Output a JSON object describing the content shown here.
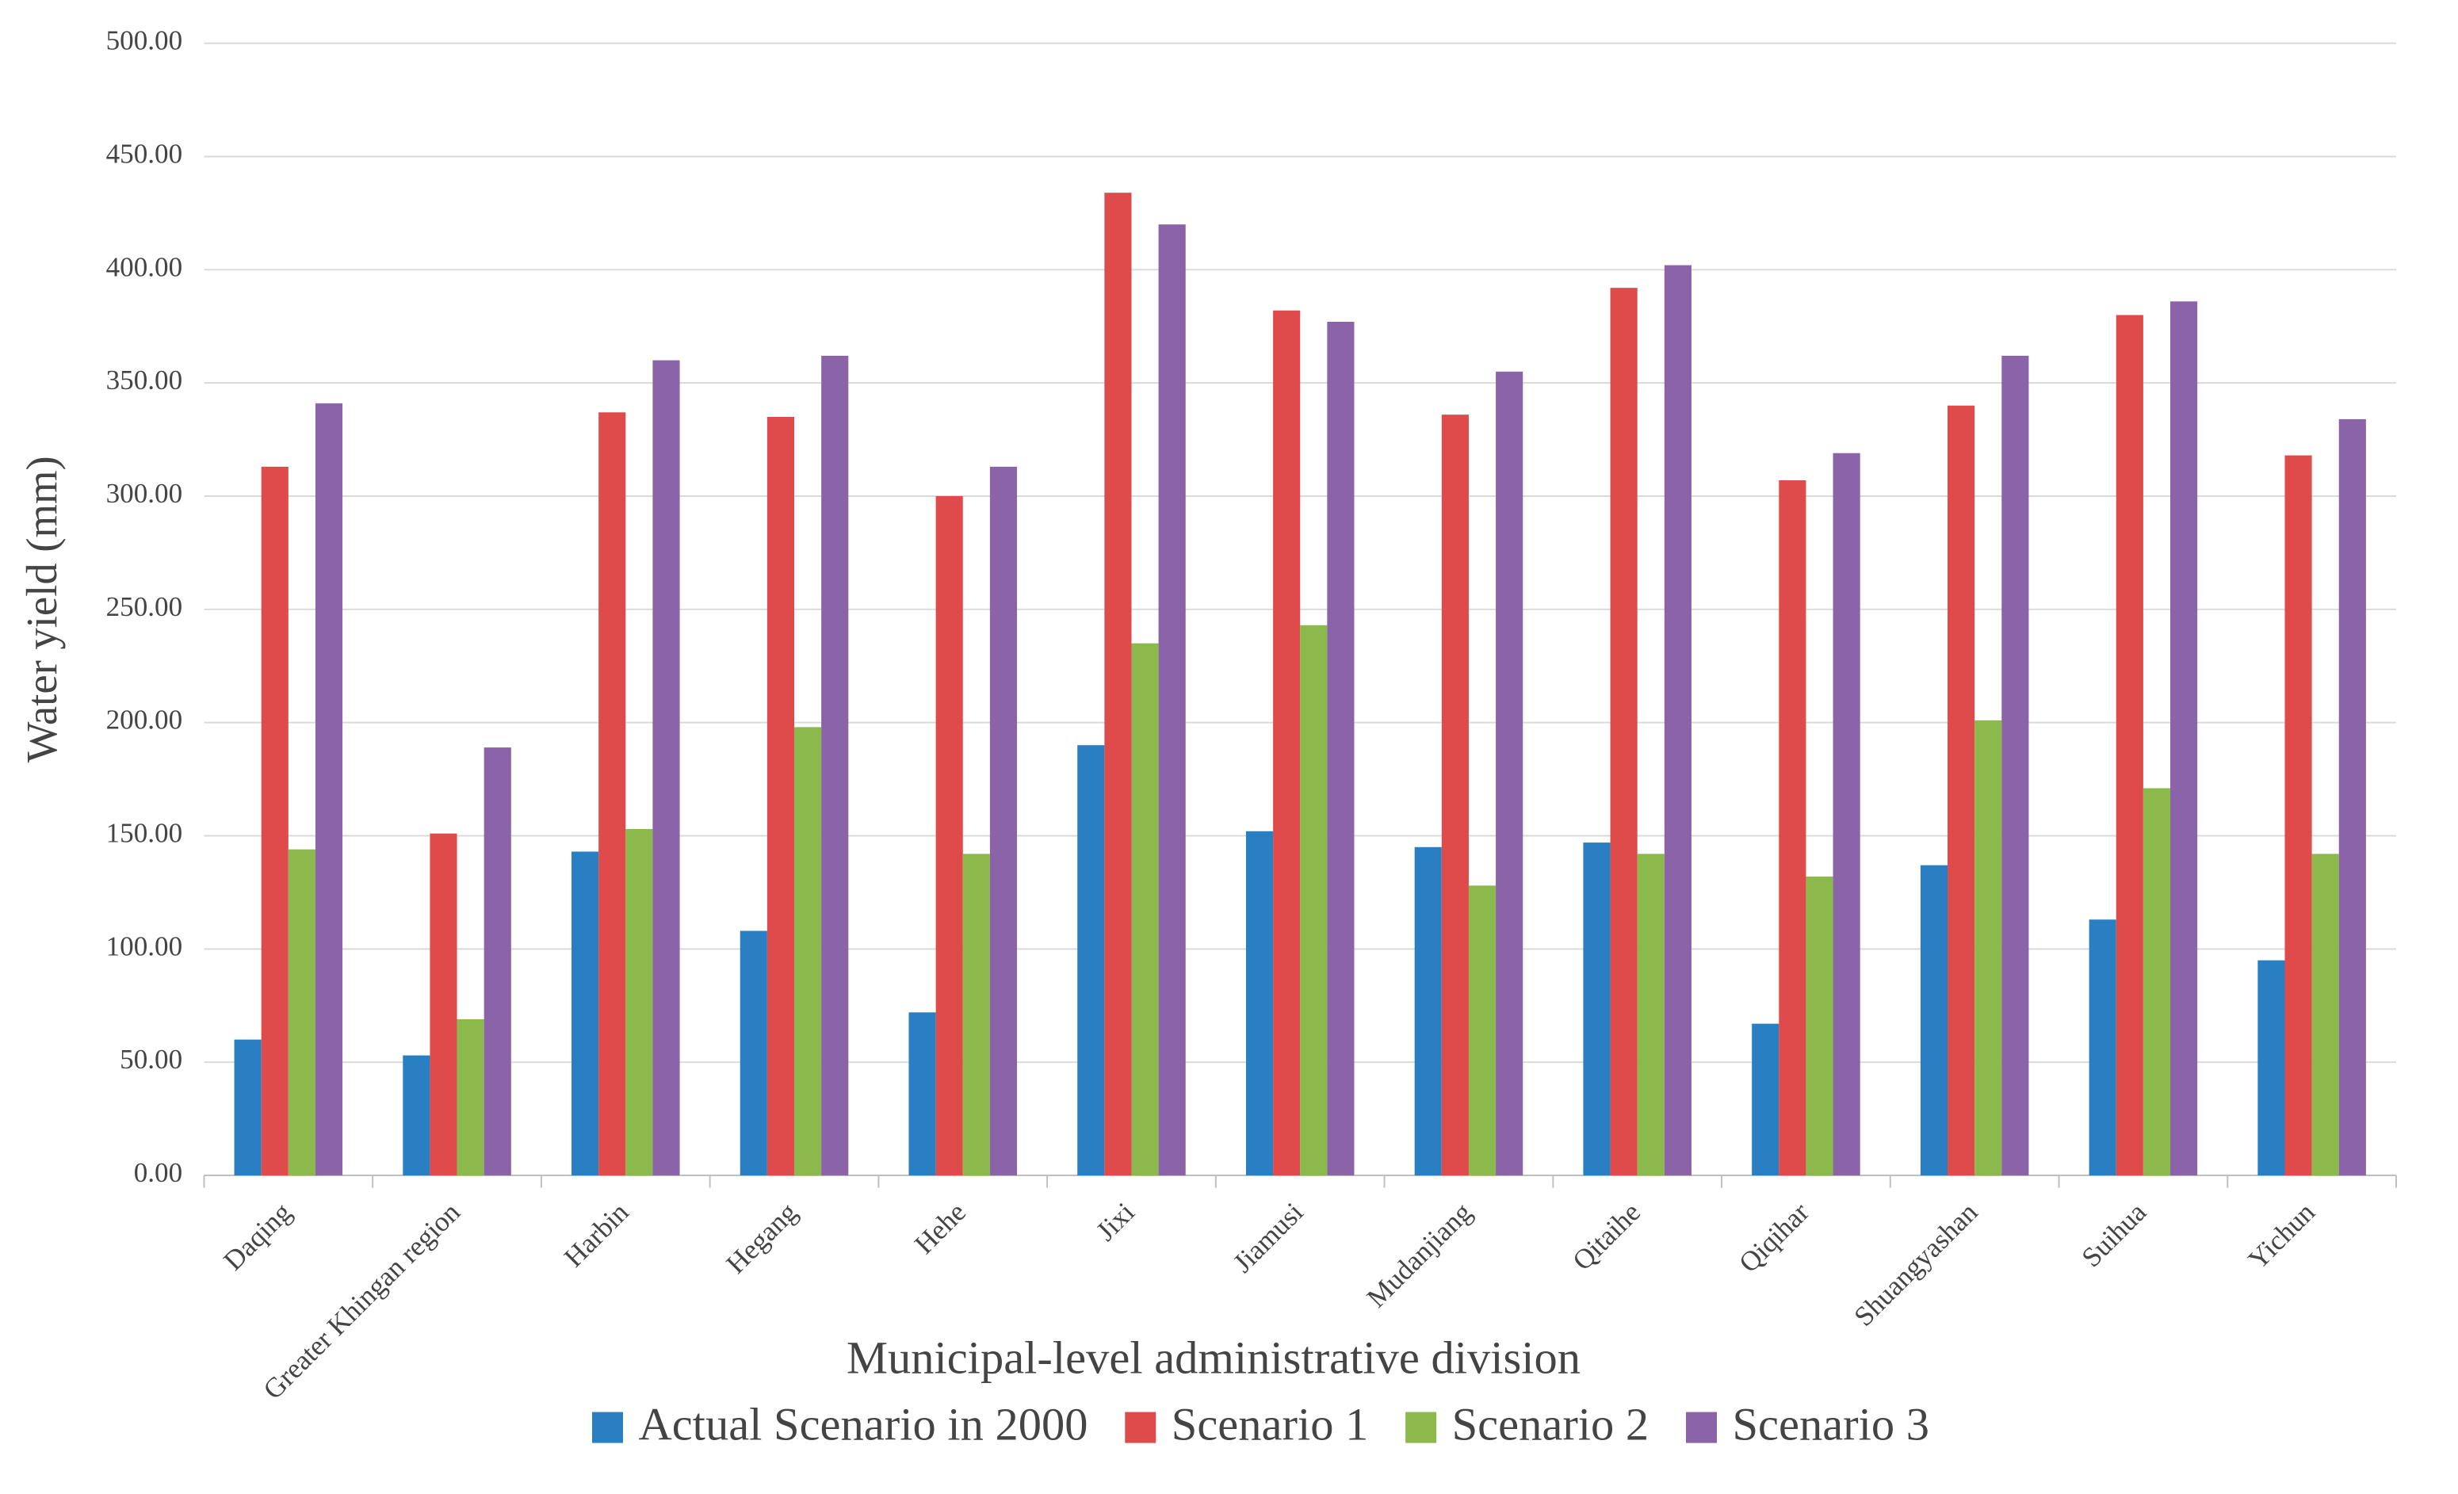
{
  "chart_data": {
    "type": "bar",
    "y_label": "Water yield (mm)",
    "x_label": "Municipal-level administrative division",
    "categories": [
      "Daqing",
      "Greater Khingan region",
      "Harbin",
      "Hegang",
      "Hehe",
      "Jixi",
      "Jiamusi",
      "Mudanjiang",
      "Qitaihe",
      "Qiqihar",
      "Shuangyashan",
      "Suihua",
      "Yichun"
    ],
    "series": [
      {
        "name": "Actual Scenario in 2000",
        "color": "#2a7fc2",
        "values": [
          60,
          53,
          143,
          108,
          72,
          190,
          152,
          145,
          147,
          67,
          137,
          113,
          95
        ]
      },
      {
        "name": "Scenario 1",
        "color": "#df4b4b",
        "values": [
          313,
          151,
          337,
          335,
          300,
          434,
          382,
          336,
          392,
          307,
          340,
          380,
          318
        ]
      },
      {
        "name": "Scenario 2",
        "color": "#8bb94c",
        "values": [
          144,
          69,
          153,
          198,
          142,
          235,
          243,
          128,
          142,
          132,
          201,
          171,
          142
        ]
      },
      {
        "name": "Scenario 3",
        "color": "#8b63a8",
        "values": [
          341,
          189,
          360,
          362,
          313,
          420,
          377,
          355,
          402,
          319,
          362,
          386,
          334
        ]
      }
    ],
    "ylim": [
      0,
      500
    ],
    "yticks": [
      {
        "value": 0,
        "label": "0.00"
      },
      {
        "value": 50,
        "label": "50.00"
      },
      {
        "value": 100,
        "label": "100.00"
      },
      {
        "value": 150,
        "label": "150.00"
      },
      {
        "value": 200,
        "label": "200.00"
      },
      {
        "value": 250,
        "label": "250.00"
      },
      {
        "value": 300,
        "label": "300.00"
      },
      {
        "value": 350,
        "label": "350.00"
      },
      {
        "value": 400,
        "label": "400.00"
      },
      {
        "value": 450,
        "label": "450.00"
      },
      {
        "value": 500,
        "label": "500.00"
      }
    ],
    "grid": true,
    "legend": "bottom"
  }
}
